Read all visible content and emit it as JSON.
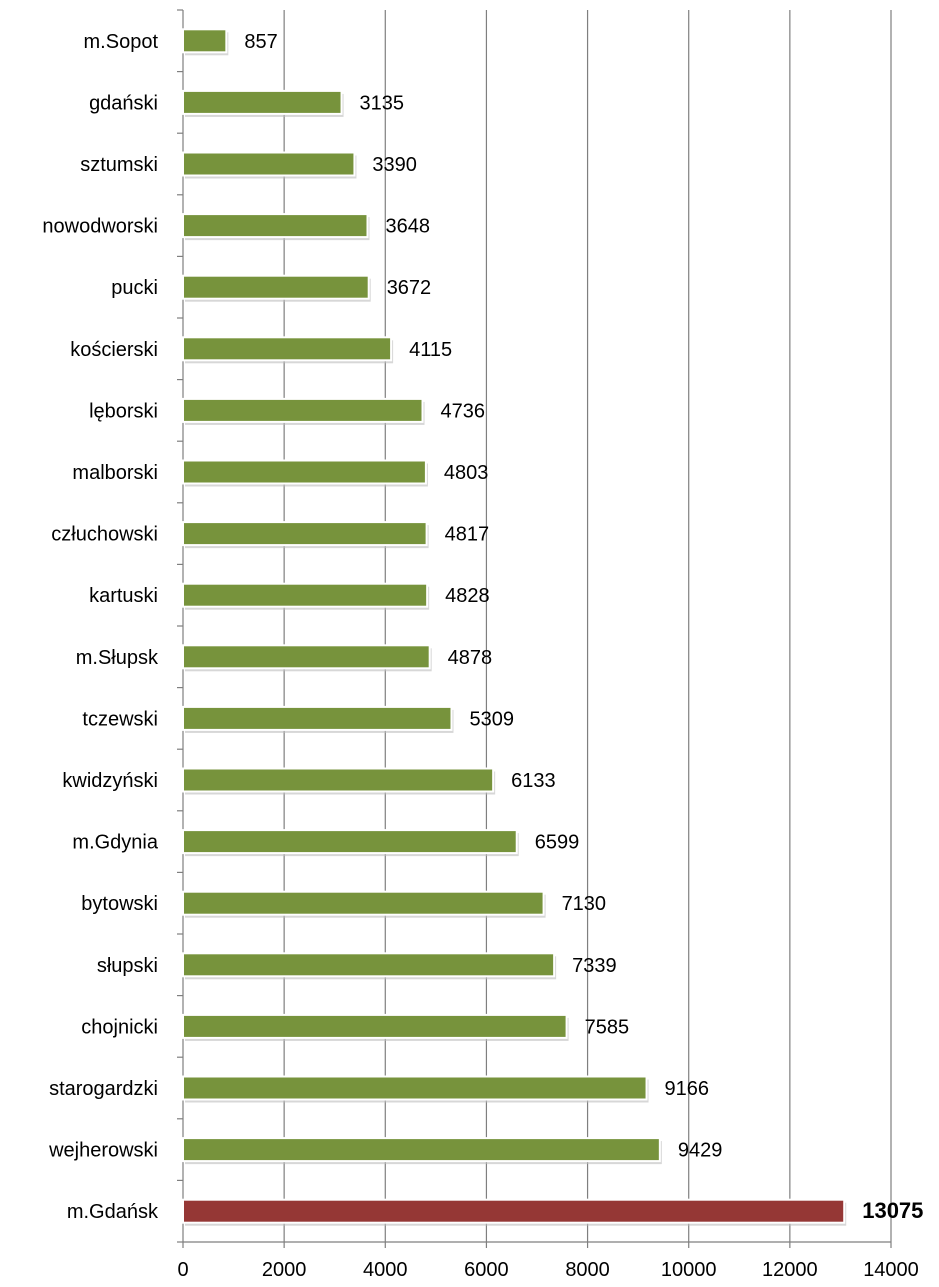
{
  "chart_data": {
    "type": "bar",
    "orientation": "horizontal",
    "categories": [
      "m.Sopot",
      "gdański",
      "sztumski",
      "nowodworski",
      "pucki",
      "kościerski",
      "lęborski",
      "malborski",
      "człuchowski",
      "kartuski",
      "m.Słupsk",
      "tczewski",
      "kwidzyński",
      "m.Gdynia",
      "bytowski",
      "słupski",
      "chojnicki",
      "starogardzki",
      "wejherowski",
      "m.Gdańsk"
    ],
    "values": [
      857,
      3135,
      3390,
      3648,
      3672,
      4115,
      4736,
      4803,
      4817,
      4828,
      4878,
      5309,
      6133,
      6599,
      7130,
      7339,
      7585,
      9166,
      9429,
      13075
    ],
    "value_labels": [
      "857",
      "3135",
      "3390",
      "3648",
      "3672",
      "4115",
      "4736",
      "4803",
      "4817",
      "4828",
      "4878",
      "5309",
      "6133",
      "6599",
      "7130",
      "7339",
      "7585",
      "9166",
      "9429",
      "13075"
    ],
    "highlight_category": "m.Gdańsk",
    "xlim": [
      0,
      14000
    ],
    "x_ticks": [
      "0",
      "2000",
      "4000",
      "6000",
      "8000",
      "10000",
      "12000",
      "14000"
    ],
    "x_tick_values": [
      0,
      2000,
      4000,
      6000,
      8000,
      10000,
      12000,
      14000
    ],
    "grid": "vertical",
    "legend": "none",
    "title": "",
    "xlabel": "",
    "ylabel": "",
    "colors": {
      "bar": "#77933C",
      "highlight_bar": "#953735",
      "grid": "#7F7F7F",
      "axis": "#7F7F7F"
    }
  }
}
